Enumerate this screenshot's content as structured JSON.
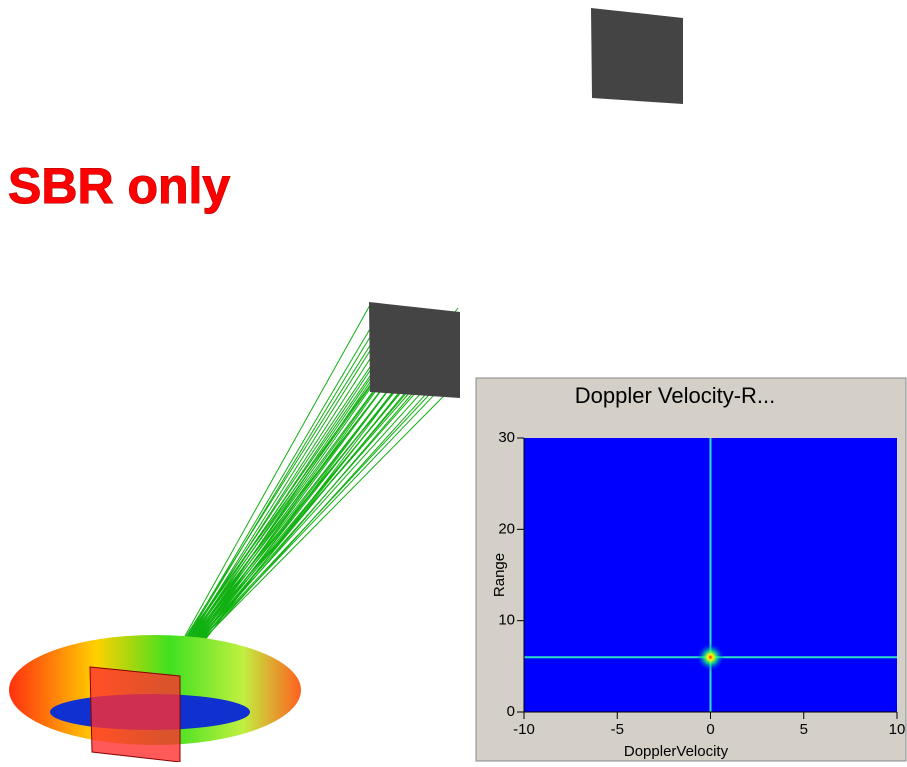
{
  "heading": "SBR only",
  "chart_data": {
    "type": "heatmap",
    "title": "Doppler Velocity-R...",
    "x_label": "DopplerVelocity",
    "y_label": "Range",
    "x": [
      0
    ],
    "y": [
      6
    ],
    "color": "#0000ff",
    "xlim": [
      -10,
      10
    ],
    "ylim": [
      0,
      30
    ],
    "xticks": [
      -10,
      -5,
      0,
      5,
      10
    ],
    "yticks": [
      0,
      10,
      20,
      30
    ]
  }
}
